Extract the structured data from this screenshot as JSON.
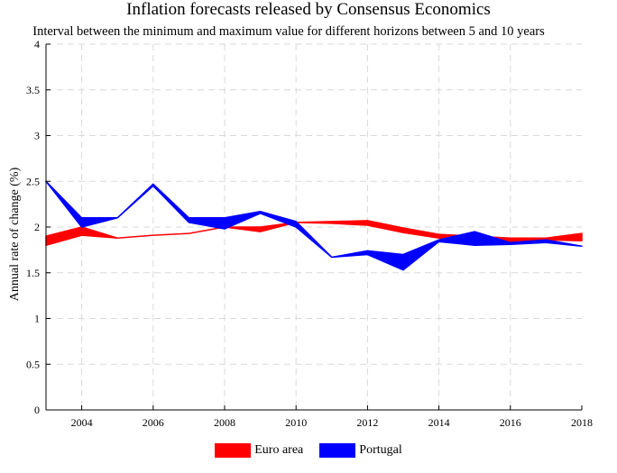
{
  "colors": {
    "euro": "#ff0000",
    "portugal": "#0000ff",
    "grid": "#d9d9d9"
  },
  "chart_data": {
    "type": "area",
    "title": "Inflation forecasts released by Consensus Economics",
    "subtitle": "Interval between the minimum and maximum value for different horizons between 5 and 10 years",
    "xlabel": "",
    "ylabel": "Annual rate of change (%)",
    "xlim": [
      2003,
      2018
    ],
    "ylim": [
      0,
      4
    ],
    "x_ticks": [
      "2004",
      "2006",
      "2008",
      "2010",
      "2012",
      "2014",
      "2016",
      "2018"
    ],
    "y_ticks": [
      "0",
      "0.5",
      "1",
      "1.5",
      "2",
      "2.5",
      "3",
      "3.5",
      "4"
    ],
    "grid": true,
    "legend_position": "bottom",
    "x": [
      2003,
      2004,
      2005,
      2006,
      2007,
      2008,
      2009,
      2010,
      2011,
      2012,
      2013,
      2014,
      2015,
      2016,
      2017,
      2018
    ],
    "series": [
      {
        "name": "Euro area",
        "min": [
          1.8,
          1.91,
          1.88,
          1.91,
          1.93,
          2.0,
          1.95,
          2.05,
          2.04,
          2.02,
          1.94,
          1.88,
          1.85,
          1.84,
          1.86,
          1.85
        ],
        "max": [
          1.9,
          2.0,
          1.88,
          1.91,
          1.93,
          2.0,
          2.0,
          2.05,
          2.06,
          2.07,
          1.99,
          1.92,
          1.9,
          1.88,
          1.88,
          1.93
        ]
      },
      {
        "name": "Portugal",
        "min": [
          2.5,
          2.0,
          2.1,
          2.45,
          2.05,
          1.98,
          2.15,
          2.0,
          1.67,
          1.7,
          1.53,
          1.84,
          1.8,
          1.81,
          1.83,
          1.79
        ],
        "max": [
          2.5,
          2.1,
          2.1,
          2.47,
          2.1,
          2.1,
          2.17,
          2.06,
          1.67,
          1.74,
          1.7,
          1.86,
          1.95,
          1.83,
          1.86,
          1.79
        ]
      }
    ]
  }
}
